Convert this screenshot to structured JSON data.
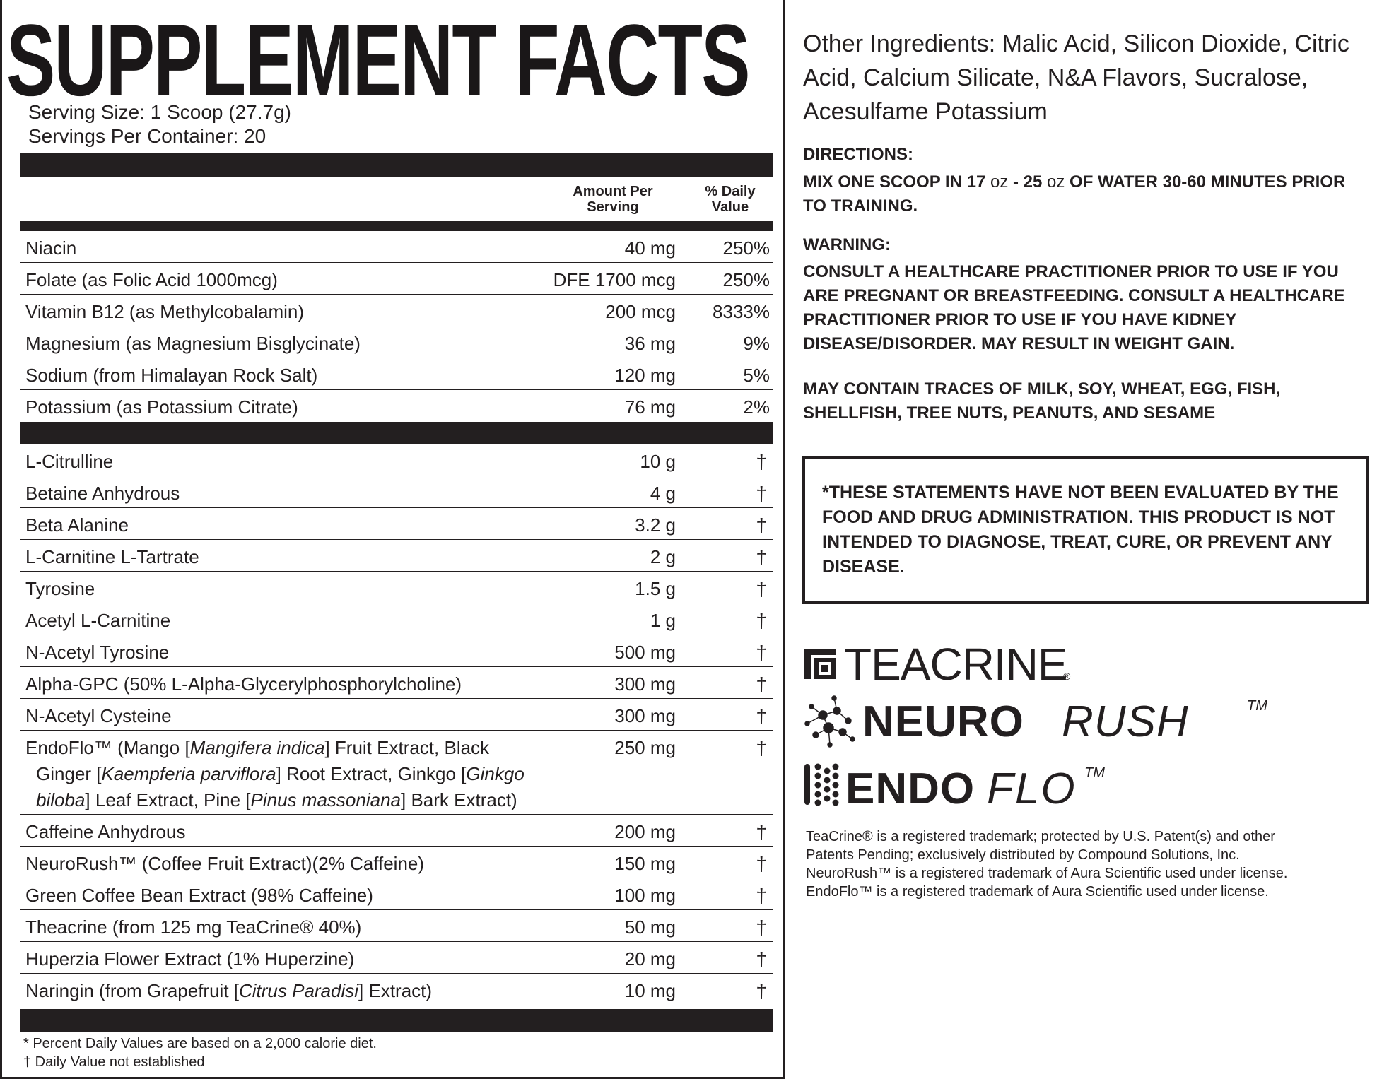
{
  "panel": {
    "title": "SUPPLEMENT FACTS",
    "serving_size": "Serving Size: 1 Scoop (27.7g)",
    "servings_per_container": "Servings Per Container: 20",
    "col_amount": "Amount Per\nServing",
    "col_dv": "% Daily\nValue",
    "vitamins": [
      {
        "name": "Niacin",
        "amount": "40 mg",
        "dv": "250%"
      },
      {
        "name": "Folate (as Folic Acid 1000mcg)",
        "amount": "DFE 1700 mcg",
        "dv": "250%"
      },
      {
        "name": "Vitamin B12 (as Methylcobalamin)",
        "amount": "200 mcg",
        "dv": "8333%"
      },
      {
        "name": "Magnesium (as Magnesium Bisglycinate)",
        "amount": "36 mg",
        "dv": "9%"
      },
      {
        "name": "Sodium (from Himalayan Rock Salt)",
        "amount": "120 mg",
        "dv": "5%"
      },
      {
        "name": "Potassium (as Potassium Citrate)",
        "amount": "76 mg",
        "dv": "2%"
      }
    ],
    "ingredients": [
      {
        "name": "L-Citrulline",
        "amount": "10 g",
        "dv": "†"
      },
      {
        "name": "Betaine Anhydrous",
        "amount": "4 g",
        "dv": "†"
      },
      {
        "name": "Beta Alanine",
        "amount": "3.2 g",
        "dv": "†"
      },
      {
        "name": "L-Carnitine L-Tartrate",
        "amount": "2 g",
        "dv": "†"
      },
      {
        "name": "Tyrosine",
        "amount": "1.5 g",
        "dv": "†"
      },
      {
        "name": "Acetyl L-Carnitine",
        "amount": "1 g",
        "dv": "†"
      },
      {
        "name": "N-Acetyl Tyrosine",
        "amount": "500 mg",
        "dv": "†"
      },
      {
        "name": "Alpha-GPC (50% L-Alpha-Glycerylphosphorylcholine)",
        "amount": "300 mg",
        "dv": "†"
      },
      {
        "name": "N-Acetyl Cysteine",
        "amount": "300 mg",
        "dv": "†"
      }
    ],
    "endoflo": {
      "p1": "EndoFlo™ (Mango [",
      "i1": "Mangifera indica",
      "p2": "] Fruit Extract, Black",
      "p3": "Ginger [",
      "i2": "Kaempferia parviflora",
      "p4": "] Root Extract, Ginkgo [",
      "i3": "Ginkgo",
      "i4": "biloba",
      "p5": "] Leaf Extract, Pine [",
      "i5": "Pinus massoniana",
      "p6": "] Bark Extract)",
      "amount": "250 mg",
      "dv": "†"
    },
    "ingredients2": [
      {
        "name": "Caffeine Anhydrous",
        "amount": "200 mg",
        "dv": "†"
      },
      {
        "name": "NeuroRush™ (Coffee Fruit Extract)(2% Caffeine)",
        "amount": "150 mg",
        "dv": "†"
      },
      {
        "name": "Green Coffee Bean Extract (98% Caffeine)",
        "amount": "100 mg",
        "dv": "†"
      },
      {
        "name": "Theacrine (from 125 mg TeaCrine® 40%)",
        "amount": "50 mg",
        "dv": "†"
      },
      {
        "name": "Huperzia Flower Extract (1% Huperzine)",
        "amount": "20 mg",
        "dv": "†"
      }
    ],
    "naringin": {
      "p1": "Naringin (from Grapefruit [",
      "i1": "Citrus Paradisi",
      "p2": "] Extract)",
      "amount": "10 mg",
      "dv": "†"
    },
    "footnote_dv": "* Percent Daily Values are based on a 2,000 calorie diet.",
    "footnote_dagger": "† Daily Value not established"
  },
  "other_ingredients": "Other Ingredients: Malic Acid, Silicon Dioxide, Citric Acid, Calcium Silicate, N&A Flavors, Sucralose, Acesulfame Potassium",
  "directions": {
    "heading": "DIRECTIONS:",
    "p1": "MIX ONE SCOOP IN 17 ",
    "oz1": "oz",
    "p2": " - 25 ",
    "oz2": "oz",
    "p3": " OF WATER 30-60 MINUTES PRIOR TO TRAINING."
  },
  "warning": {
    "heading": "WARNING:",
    "body": "CONSULT A HEALTHCARE PRACTITIONER PRIOR TO USE IF YOU ARE PREGNANT OR BREASTFEEDING. CONSULT A HEALTHCARE PRACTITIONER PRIOR TO USE IF YOU HAVE KIDNEY DISEASE/DISORDER. MAY RESULT IN WEIGHT GAIN."
  },
  "allergen": "MAY CONTAIN TRACES OF MILK, SOY, WHEAT, EGG, FISH, SHELLFISH, TREE NUTS, PEANUTS, AND SESAME",
  "disclaimer": "*THESE STATEMENTS HAVE NOT BEEN EVALUATED BY THE FOOD AND DRUG ADMINISTRATION. THIS PRODUCT IS NOT INTENDED TO DIAGNOSE, TREAT, CURE, OR PREVENT ANY DISEASE.",
  "logos": {
    "teacrine": "TEACRINE",
    "teacrine_reg": "®",
    "neuro": "NEURO",
    "rush": "RUSH",
    "neuro_tm": "TM",
    "endo": "ENDO",
    "flo": "FLO",
    "endo_tm": "TM",
    "teacrine_icon": "teacrine-mark-icon",
    "neurorush_icon": "molecule-cluster-icon",
    "endoflo_icon": "dot-grid-icon"
  },
  "trademarks": [
    "TeaCrine® is a registered trademark; protected by U.S. Patent(s) and other",
    "Patents Pending; exclusively distributed by Compound Solutions, Inc.",
    "NeuroRush™ is a registered trademark of Aura Scientific used under license.",
    "EndoFlo™ is a registered trademark of Aura Scientific used under license."
  ],
  "colors": {
    "ink": "#231f20",
    "background": "#ffffff"
  }
}
